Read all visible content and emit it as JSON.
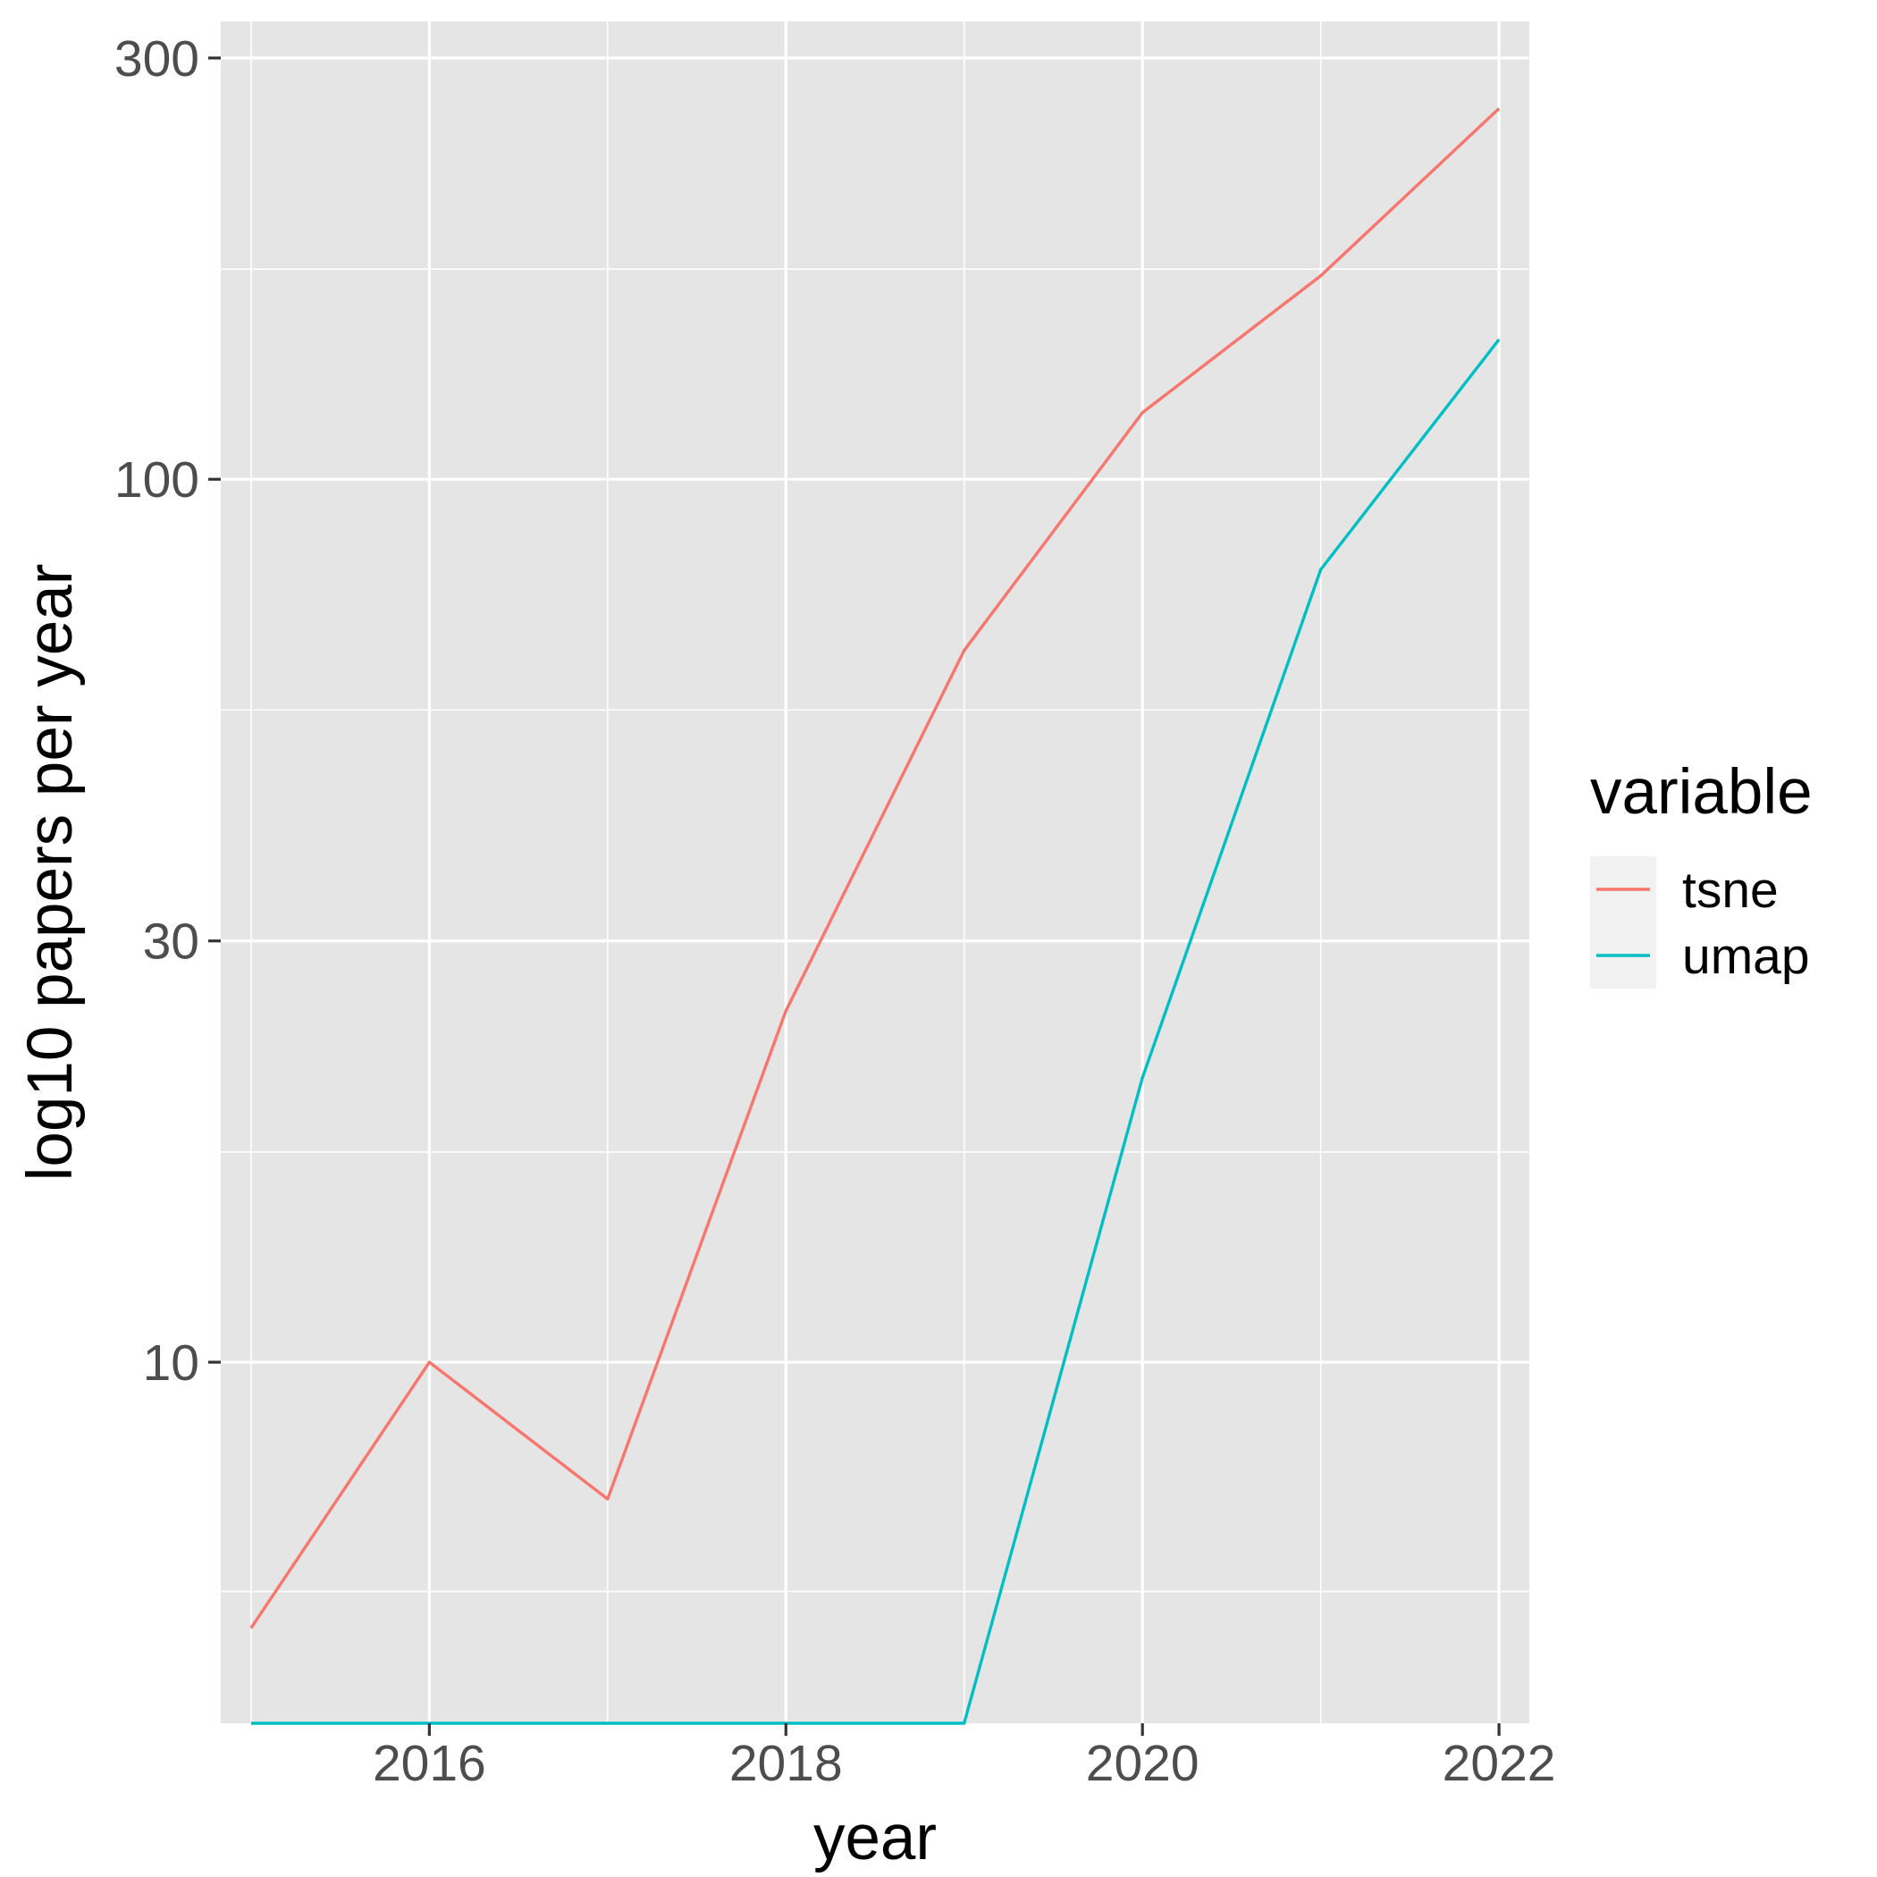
{
  "chart_data": {
    "type": "line",
    "title": "",
    "xlabel": "year",
    "ylabel": "log10 papers per year",
    "x_scale": "linear",
    "y_scale": "log10",
    "xlim": [
      2014.83,
      2022.17
    ],
    "ylim": [
      3.9,
      330
    ],
    "x_ticks": [
      2016,
      2018,
      2020,
      2022
    ],
    "x_tick_labels": [
      "2016",
      "2018",
      "2020",
      "2022"
    ],
    "x_minor_ticks": [
      2015,
      2017,
      2019,
      2021
    ],
    "y_ticks": [
      10,
      30,
      100,
      300
    ],
    "y_tick_labels": [
      "10",
      "30",
      "100",
      "300"
    ],
    "y_minor_ticks": [
      5.5,
      17.3,
      54.8,
      173
    ],
    "grid": true,
    "background": "#e5e5e5",
    "legend": {
      "title": "variable",
      "position": "right"
    },
    "x": [
      2015,
      2016,
      2017,
      2018,
      2019,
      2020,
      2021,
      2022
    ],
    "series": [
      {
        "name": "tsne",
        "color": "#f8766d",
        "values": [
          5,
          10,
          7,
          25,
          64,
          119,
          170,
          263
        ]
      },
      {
        "name": "umap",
        "color": "#00bfc4",
        "values": [
          3.9,
          3.9,
          3.9,
          3.9,
          3.9,
          21,
          79,
          144
        ]
      }
    ]
  }
}
